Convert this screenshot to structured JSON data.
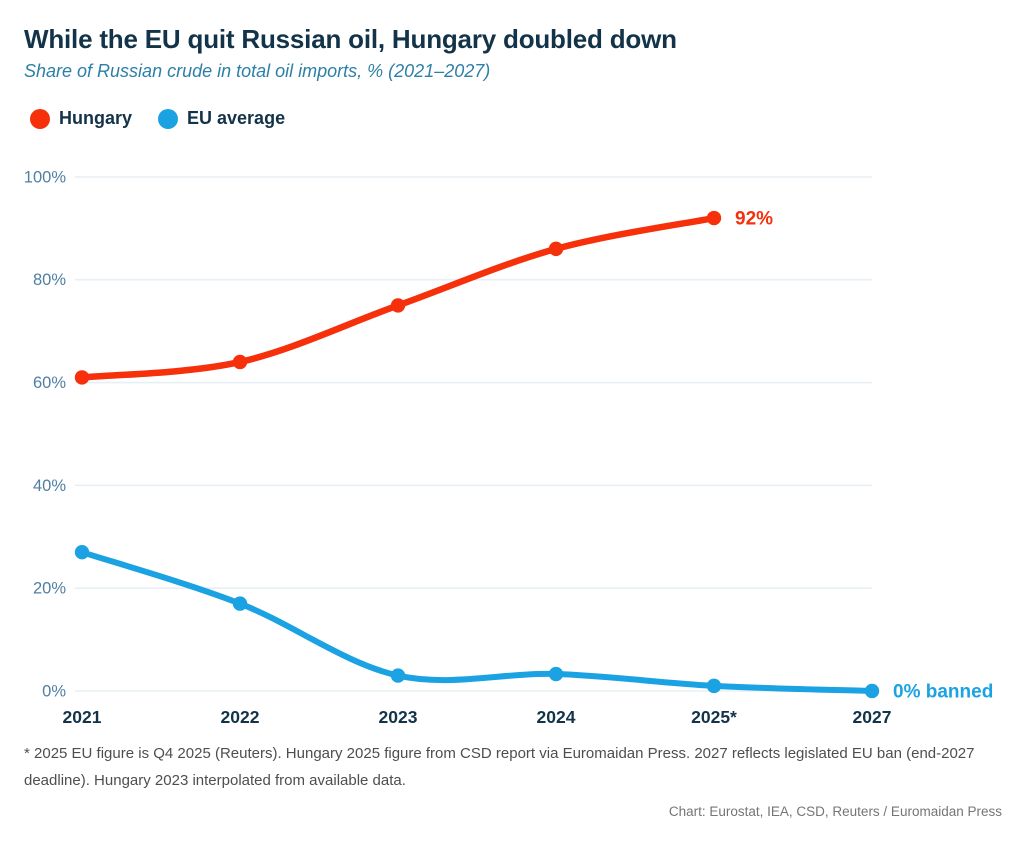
{
  "header": {
    "title": "While the EU quit Russian oil, Hungary doubled down",
    "subtitle": "Share of Russian crude in total oil imports, % (2021–2027)"
  },
  "chart_data": {
    "type": "line",
    "title": "While the EU quit Russian oil, Hungary doubled down",
    "subtitle": "Share of Russian crude in total oil imports, % (2021–2027)",
    "categories": [
      "2021",
      "2022",
      "2023",
      "2024",
      "2025*",
      "2027"
    ],
    "series": [
      {
        "name": "Hungary",
        "color": "#f5300b",
        "values": [
          61,
          64,
          75,
          86,
          92,
          null
        ],
        "end_label": "92%"
      },
      {
        "name": "EU average",
        "color": "#1ba2e2",
        "values": [
          27,
          17,
          3,
          3.3,
          1,
          0
        ],
        "end_label": "0% banned"
      }
    ],
    "xlabel": "",
    "ylabel": "",
    "ylim": [
      0,
      100
    ],
    "y_ticks": [
      "0%",
      "20%",
      "40%",
      "60%",
      "80%",
      "100%"
    ],
    "grid": true,
    "legend_position": "top-left",
    "colors": {
      "grid_line": "#e8eff4",
      "y_tick_text": "#4f7fa3",
      "x_tick_text": "#133349",
      "title_text": "#133349",
      "subtitle_text": "#2d7fa8"
    }
  },
  "footnote": "* 2025 EU figure is Q4 2025 (Reuters). Hungary 2025 figure from CSD report via Euromaidan Press. 2027 reflects legislated EU ban (end-2027 deadline). Hungary 2023 interpolated from available data.",
  "credit": "Chart: Eurostat, IEA, CSD, Reuters / Euromaidan Press"
}
